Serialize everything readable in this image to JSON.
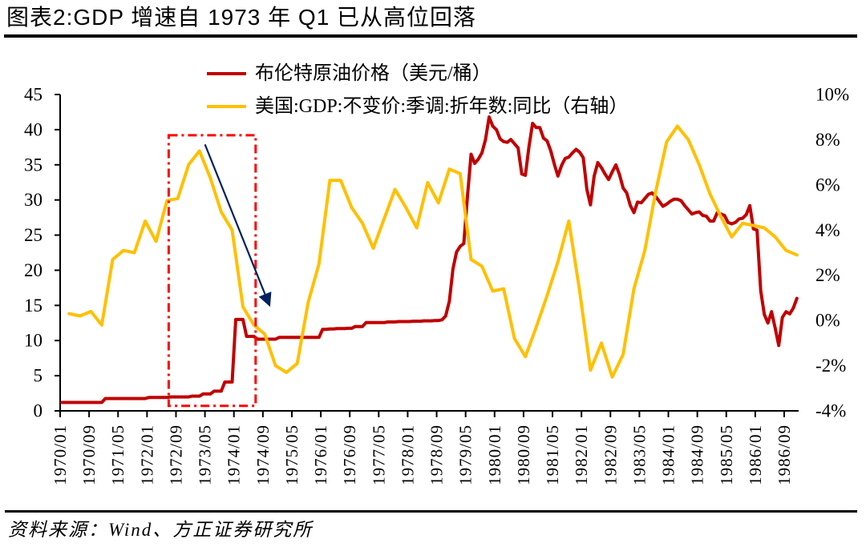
{
  "footer": {
    "source": "资料来源：Wind、方正证券研究所"
  },
  "chart_data": {
    "type": "line",
    "title": "图表2:GDP 增速自 1973 年 Q1 已从高位回落",
    "xlabel": "",
    "ylabel": "",
    "y2label": "",
    "grid": false,
    "legend": {
      "position": "top-center"
    },
    "x_axis": {
      "start": "1970/01",
      "end": "1986/12",
      "tick_labels": [
        "1970/01",
        "1970/09",
        "1971/05",
        "1972/01",
        "1972/09",
        "1973/05",
        "1974/01",
        "1974/09",
        "1975/05",
        "1976/01",
        "1976/09",
        "1977/05",
        "1978/01",
        "1978/09",
        "1979/05",
        "1980/01",
        "1980/09",
        "1981/05",
        "1982/01",
        "1982/09",
        "1983/05",
        "1984/01",
        "1984/09",
        "1985/05",
        "1986/01",
        "1986/09"
      ]
    },
    "y_left": {
      "range": [
        0,
        45
      ],
      "ticks": [
        0,
        5,
        10,
        15,
        20,
        25,
        30,
        35,
        40,
        45
      ],
      "tick_labels": [
        "0",
        "5",
        "10",
        "15",
        "20",
        "25",
        "30",
        "35",
        "40",
        "45"
      ]
    },
    "y_right": {
      "range": [
        -4,
        10
      ],
      "unit": "%",
      "ticks": [
        -4,
        -2,
        0,
        2,
        4,
        6,
        8,
        10
      ],
      "tick_labels": [
        "-4%",
        "-2%",
        "0%",
        "2%",
        "4%",
        "6%",
        "8%",
        "10%"
      ]
    },
    "series": [
      {
        "name": "布伦特原油价格（美元/桶）",
        "axis": "left",
        "frequency": "monthly",
        "start": "1970/01",
        "color": "#C00000",
        "values": [
          1.2,
          1.2,
          1.2,
          1.2,
          1.2,
          1.2,
          1.2,
          1.2,
          1.2,
          1.2,
          1.2,
          1.2,
          1.75,
          1.75,
          1.75,
          1.75,
          1.75,
          1.75,
          1.75,
          1.75,
          1.75,
          1.75,
          1.75,
          1.75,
          1.9,
          1.9,
          1.9,
          1.9,
          1.9,
          1.9,
          1.98,
          1.98,
          1.98,
          1.98,
          1.98,
          1.98,
          2.1,
          2.1,
          2.1,
          2.4,
          2.4,
          2.4,
          2.8,
          2.8,
          2.8,
          4.1,
          4.1,
          4.1,
          13.0,
          13.0,
          13.0,
          10.6,
          10.6,
          10.6,
          10.2,
          10.2,
          10.2,
          10.2,
          10.2,
          10.2,
          10.45,
          10.45,
          10.45,
          10.45,
          10.45,
          10.45,
          10.45,
          10.45,
          10.45,
          10.45,
          10.45,
          10.45,
          11.6,
          11.6,
          11.65,
          11.65,
          11.7,
          11.7,
          11.7,
          11.75,
          11.75,
          12.0,
          12.0,
          12.0,
          12.55,
          12.55,
          12.55,
          12.55,
          12.55,
          12.55,
          12.65,
          12.65,
          12.65,
          12.7,
          12.7,
          12.7,
          12.7,
          12.75,
          12.75,
          12.75,
          12.8,
          12.8,
          12.8,
          12.85,
          12.85,
          12.95,
          13.5,
          15.6,
          20.2,
          22.6,
          23.4,
          23.8,
          30.4,
          36.5,
          35.2,
          35.8,
          36.7,
          38.6,
          41.8,
          40.5,
          40.0,
          38.7,
          38.3,
          38.2,
          38.6,
          38.0,
          37.4,
          33.7,
          33.5,
          37.6,
          40.9,
          40.3,
          40.3,
          38.8,
          38.4,
          37.0,
          35.1,
          33.4,
          34.9,
          35.9,
          36.1,
          36.7,
          37.2,
          36.8,
          36.0,
          31.5,
          29.3,
          33.4,
          35.3,
          34.6,
          33.7,
          32.9,
          34.0,
          35.0,
          33.6,
          31.7,
          31.0,
          29.2,
          28.2,
          29.7,
          29.6,
          30.2,
          30.8,
          31.0,
          30.5,
          29.8,
          29.1,
          29.4,
          29.8,
          30.1,
          30.1,
          29.9,
          29.2,
          28.6,
          28.0,
          28.2,
          28.3,
          27.8,
          27.7,
          27.0,
          27.0,
          28.2,
          28.0,
          27.8,
          26.8,
          26.6,
          26.8,
          27.3,
          27.4,
          27.9,
          29.2,
          25.9,
          25.7,
          17.1,
          13.7,
          12.5,
          14.1,
          11.8,
          9.3,
          13.3,
          14.1,
          13.8,
          14.6,
          16.0
        ]
      },
      {
        "name": "美国:GDP:不变价:季调:折年数:同比（右轴）",
        "axis": "right",
        "frequency": "quarterly",
        "start": "1970Q1",
        "unit": "%",
        "color": "#FFC000",
        "values": [
          0.3,
          0.2,
          0.4,
          -0.2,
          2.7,
          3.1,
          3.0,
          4.4,
          3.5,
          5.3,
          5.4,
          6.9,
          7.5,
          6.3,
          4.8,
          4.0,
          0.6,
          -0.2,
          -0.6,
          -2.0,
          -2.3,
          -1.9,
          0.8,
          2.5,
          6.2,
          6.2,
          5.0,
          4.3,
          3.2,
          4.5,
          5.8,
          5.0,
          4.1,
          6.1,
          5.2,
          6.7,
          6.5,
          2.7,
          2.4,
          1.3,
          1.4,
          -0.8,
          -1.6,
          -0.3,
          1.1,
          2.6,
          4.4,
          1.3,
          -2.2,
          -1.0,
          -2.5,
          -1.5,
          1.4,
          3.1,
          5.7,
          7.9,
          8.6,
          8.0,
          6.9,
          5.6,
          4.6,
          3.7,
          4.3,
          4.2,
          4.1,
          3.7,
          3.1,
          2.9
        ]
      }
    ],
    "annotations": [
      {
        "type": "highlight-box",
        "line_style": "dash-dot",
        "color": "#FF0000",
        "axis": "left",
        "x_from": "1972/07",
        "x_to": "1974/07",
        "y_from": 0.7,
        "y_to": 39.2
      },
      {
        "type": "arrow",
        "color": "#002060",
        "axis": "left",
        "from": {
          "x": "1973/05",
          "y": 37.9
        },
        "to": {
          "x": "1974/11",
          "y": 14.8
        }
      }
    ]
  }
}
